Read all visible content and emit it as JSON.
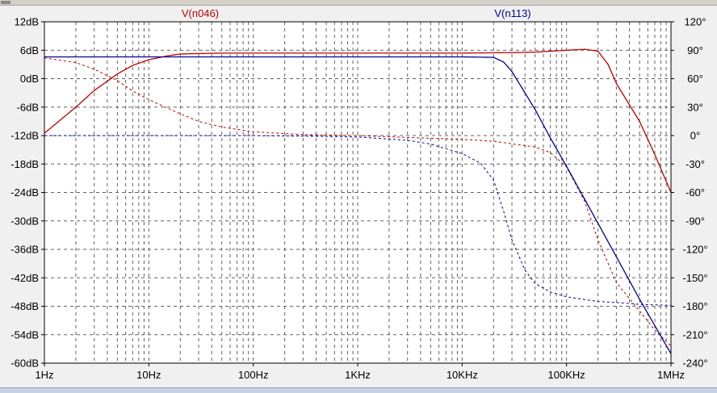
{
  "chart_data": {
    "type": "line",
    "xscale": "log",
    "xlim": [
      1,
      1000000
    ],
    "ylim_left": [
      -60,
      12
    ],
    "ylim_right": [
      -240,
      120
    ],
    "grid": true,
    "x_ticks": [
      {
        "value": 1,
        "label": "1Hz"
      },
      {
        "value": 10,
        "label": "10Hz"
      },
      {
        "value": 100,
        "label": "100Hz"
      },
      {
        "value": 1000,
        "label": "1KHz"
      },
      {
        "value": 10000,
        "label": "10KHz"
      },
      {
        "value": 100000,
        "label": "100KHz"
      },
      {
        "value": 1000000,
        "label": "1MHz"
      }
    ],
    "y_left_ticks": [
      {
        "value": 12,
        "label": "12dB"
      },
      {
        "value": 6,
        "label": "6dB"
      },
      {
        "value": 0,
        "label": "0dB"
      },
      {
        "value": -6,
        "label": "-6dB"
      },
      {
        "value": -12,
        "label": "-12dB"
      },
      {
        "value": -18,
        "label": "-18dB"
      },
      {
        "value": -24,
        "label": "-24dB"
      },
      {
        "value": -30,
        "label": "-30dB"
      },
      {
        "value": -36,
        "label": "-36dB"
      },
      {
        "value": -42,
        "label": "-42dB"
      },
      {
        "value": -48,
        "label": "-48dB"
      },
      {
        "value": -54,
        "label": "-54dB"
      },
      {
        "value": -60,
        "label": "-60dB"
      }
    ],
    "y_right_ticks": [
      {
        "value": 120,
        "label": "120°"
      },
      {
        "value": 90,
        "label": "90°"
      },
      {
        "value": 60,
        "label": "60°"
      },
      {
        "value": 30,
        "label": "30°"
      },
      {
        "value": 0,
        "label": "0°"
      },
      {
        "value": -30,
        "label": "-30°"
      },
      {
        "value": -60,
        "label": "-60°"
      },
      {
        "value": -90,
        "label": "-90°"
      },
      {
        "value": -120,
        "label": "-120°"
      },
      {
        "value": -150,
        "label": "-150°"
      },
      {
        "value": -180,
        "label": "-180°"
      },
      {
        "value": -210,
        "label": "-210°"
      },
      {
        "value": -240,
        "label": "-240°"
      }
    ],
    "series": [
      {
        "name": "V(n046)",
        "color": "#c00000",
        "magnitude_db": {
          "x": [
            1,
            2,
            3,
            5,
            7,
            10,
            15,
            20,
            30,
            50,
            100,
            300,
            1000,
            3000,
            10000,
            30000,
            50000,
            100000,
            150000,
            200000,
            250000,
            300000,
            500000,
            700000,
            1000000
          ],
          "y": [
            -11.5,
            -6.0,
            -2.5,
            1.0,
            2.8,
            4.0,
            4.8,
            5.2,
            5.3,
            5.4,
            5.4,
            5.4,
            5.4,
            5.4,
            5.4,
            5.5,
            5.6,
            6.0,
            6.2,
            5.8,
            3.0,
            -1.0,
            -9.0,
            -16.0,
            -24.0
          ]
        },
        "phase_deg": {
          "x": [
            1,
            2,
            3,
            5,
            7,
            10,
            15,
            20,
            30,
            50,
            100,
            300,
            1000,
            3000,
            10000,
            20000,
            50000,
            70000,
            100000,
            150000,
            200000,
            300000,
            500000,
            700000,
            1000000
          ],
          "y": [
            82,
            77,
            70,
            58,
            47,
            38,
            29,
            23,
            15,
            9,
            4,
            1,
            0,
            -2,
            -4,
            -6,
            -12,
            -18,
            -33,
            -70,
            -110,
            -155,
            -185,
            -205,
            -222
          ]
        }
      },
      {
        "name": "V(n113)",
        "color": "#00009c",
        "magnitude_db": {
          "x": [
            1,
            10,
            100,
            1000,
            10000,
            20000,
            25000,
            30000,
            40000,
            50000,
            70000,
            100000,
            200000,
            500000,
            1000000
          ],
          "y": [
            4.6,
            4.6,
            4.6,
            4.6,
            4.6,
            4.5,
            3.5,
            1.5,
            -3.0,
            -6.5,
            -12.5,
            -18.5,
            -30.5,
            -46.5,
            -58.0
          ]
        },
        "phase_deg": {
          "x": [
            1,
            10,
            100,
            300,
            1000,
            3000,
            5000,
            10000,
            15000,
            20000,
            25000,
            30000,
            40000,
            50000,
            70000,
            100000,
            150000,
            200000,
            300000,
            500000,
            700000,
            1000000
          ],
          "y": [
            0,
            0,
            0,
            -0.5,
            -1.5,
            -5,
            -9,
            -19,
            -29,
            -47,
            -80,
            -110,
            -142,
            -156,
            -165,
            -170,
            -173,
            -175,
            -176,
            -178,
            -178.5,
            -179
          ]
        }
      }
    ]
  }
}
